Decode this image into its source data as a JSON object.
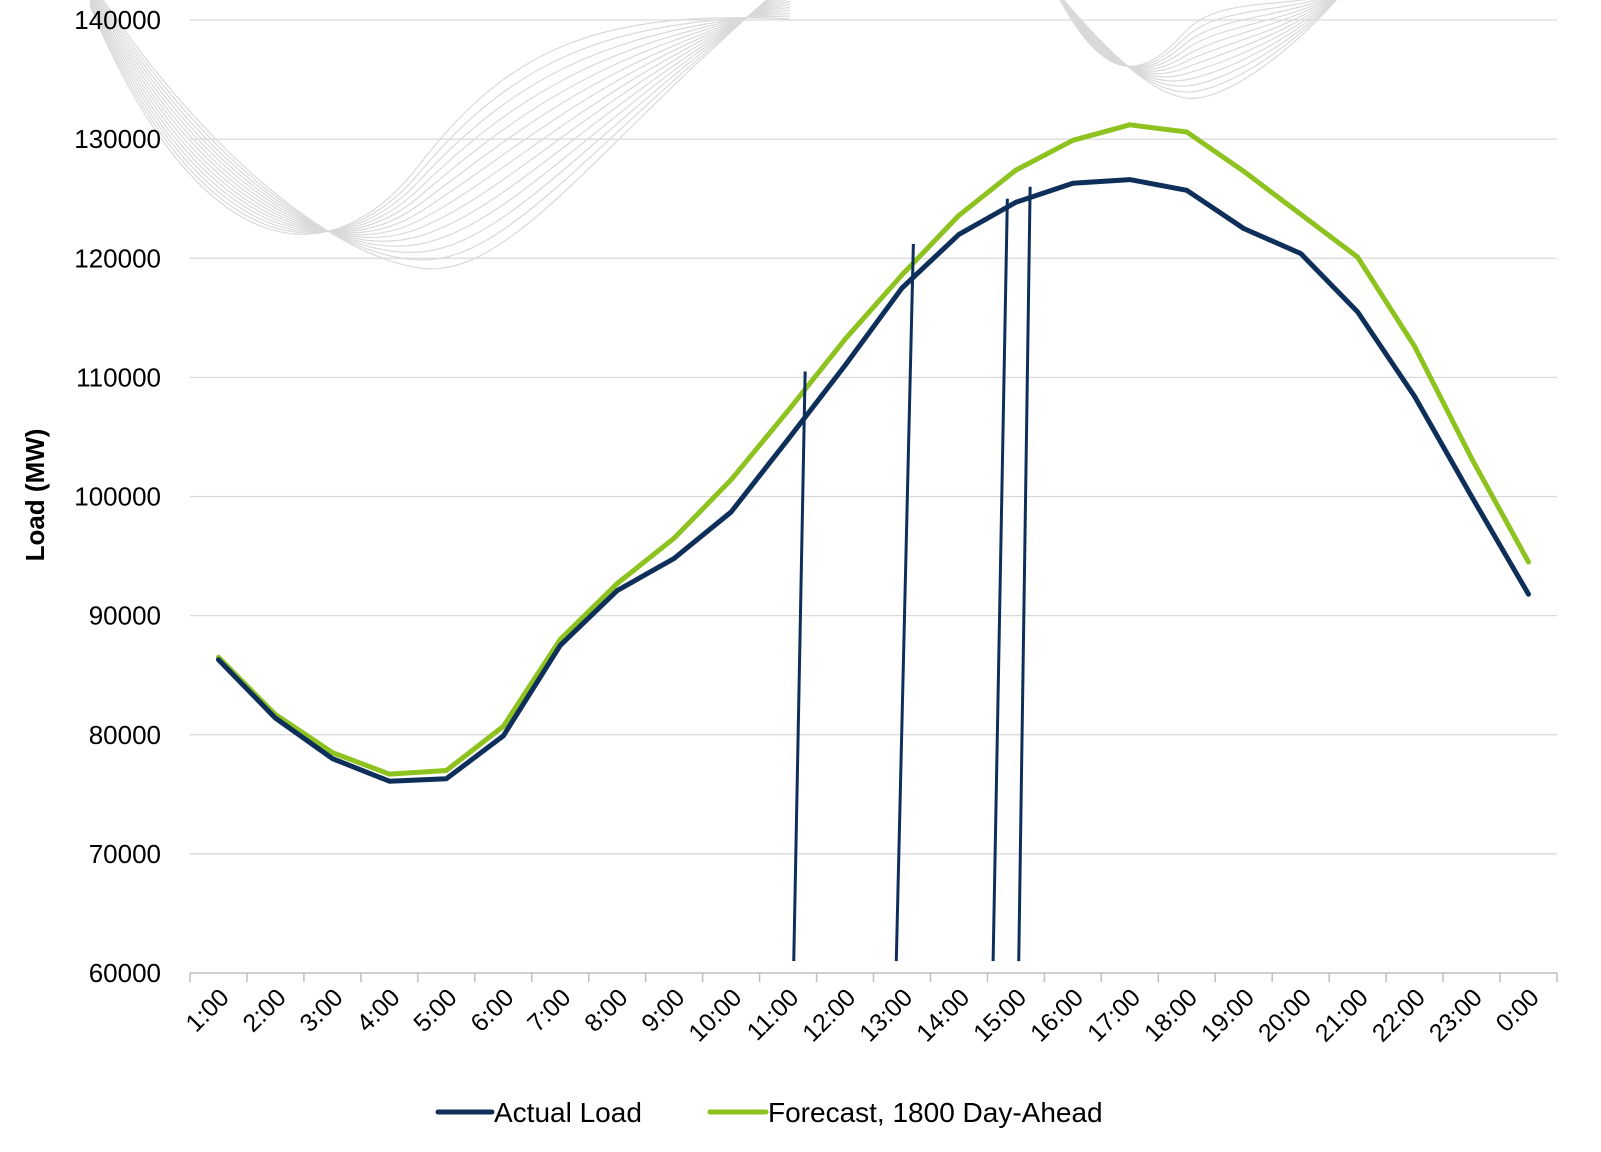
{
  "chart_data": {
    "type": "line",
    "title": "",
    "xlabel": "",
    "ylabel": "Load (MW)",
    "ylim": [
      60000,
      140000
    ],
    "yticks": [
      60000,
      70000,
      80000,
      90000,
      100000,
      110000,
      120000,
      130000,
      140000
    ],
    "grid": true,
    "legend_position": "bottom",
    "categories": [
      "1:00",
      "2:00",
      "3:00",
      "4:00",
      "5:00",
      "6:00",
      "7:00",
      "8:00",
      "9:00",
      "10:00",
      "11:00",
      "12:00",
      "13:00",
      "14:00",
      "15:00",
      "16:00",
      "17:00",
      "18:00",
      "19:00",
      "20:00",
      "21:00",
      "22:00",
      "23:00",
      "0:00"
    ],
    "series": [
      {
        "name": "Actual Load",
        "color": "#0d2f5a",
        "values": [
          86300,
          81400,
          78000,
          76100,
          76300,
          79900,
          87500,
          92100,
          94800,
          98700,
          104800,
          111000,
          117500,
          122000,
          124700,
          126300,
          126600,
          125700,
          122500,
          120400,
          115500,
          108400,
          100000,
          91800
        ]
      },
      {
        "name": "Forecast, 1800 Day-Ahead",
        "color": "#8dc21f",
        "values": [
          86500,
          81700,
          78500,
          76700,
          77000,
          80700,
          88000,
          92700,
          96500,
          101400,
          107200,
          113200,
          118600,
          123600,
          127400,
          129900,
          131200,
          130600,
          127300,
          123700,
          120100,
          112600,
          103200,
          94500
        ]
      }
    ],
    "spikes": [
      {
        "color": "#0d2f5a",
        "from": [
          11.1,
          61000
        ],
        "to": [
          11.3,
          110500
        ]
      },
      {
        "color": "#0d2f5a",
        "from": [
          12.9,
          61000
        ],
        "to": [
          13.2,
          121200
        ]
      },
      {
        "color": "#0d2f5a",
        "from": [
          14.6,
          61000
        ],
        "to": [
          14.85,
          125000
        ]
      },
      {
        "color": "#0d2f5a",
        "from": [
          15.05,
          61000
        ],
        "to": [
          15.25,
          126000
        ]
      }
    ]
  }
}
